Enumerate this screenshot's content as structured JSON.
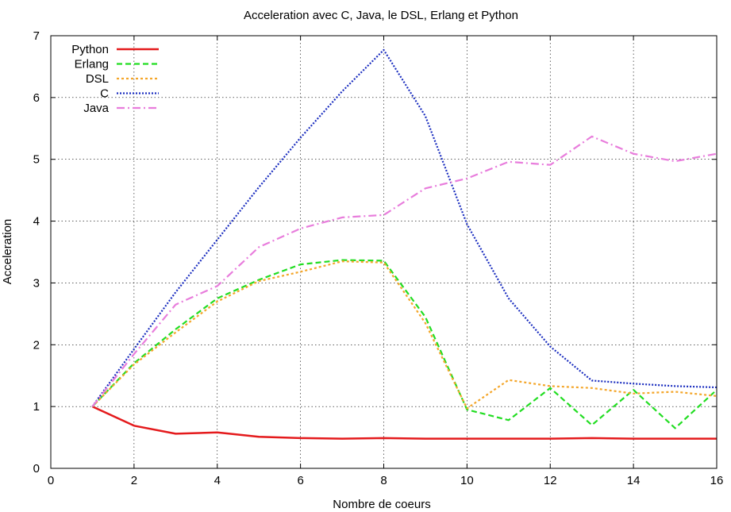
{
  "chart_data": {
    "type": "line",
    "title": "Acceleration avec C, Java, le DSL, Erlang et Python",
    "xlabel": "Nombre de coeurs",
    "ylabel": "Acceleration",
    "xlim": [
      0,
      16
    ],
    "ylim": [
      0,
      7
    ],
    "xticks": [
      0,
      2,
      4,
      6,
      8,
      10,
      12,
      14,
      16
    ],
    "yticks": [
      0,
      1,
      2,
      3,
      4,
      5,
      6,
      7
    ],
    "grid": true,
    "legend_position": "top-left",
    "series": [
      {
        "name": "Python",
        "color": "#e41a1c",
        "style": "solid",
        "x": [
          1,
          2,
          3,
          4,
          5,
          6,
          7,
          8,
          9,
          10,
          11,
          12,
          13,
          14,
          15,
          16
        ],
        "y": [
          1.0,
          0.69,
          0.56,
          0.58,
          0.51,
          0.49,
          0.48,
          0.49,
          0.48,
          0.48,
          0.48,
          0.48,
          0.49,
          0.48,
          0.48,
          0.48
        ]
      },
      {
        "name": "Erlang",
        "color": "#22dd22",
        "style": "dashed",
        "x": [
          1,
          2,
          3,
          4,
          5,
          6,
          7,
          8,
          9,
          10,
          11,
          12,
          13,
          14,
          15,
          16
        ],
        "y": [
          1.0,
          1.7,
          2.25,
          2.75,
          3.05,
          3.3,
          3.37,
          3.36,
          2.45,
          0.95,
          0.78,
          1.3,
          0.7,
          1.27,
          0.65,
          1.27
        ]
      },
      {
        "name": "DSL",
        "color": "#f4a62a",
        "style": "dotted",
        "x": [
          1,
          2,
          3,
          4,
          5,
          6,
          7,
          8,
          9,
          10,
          11,
          12,
          13,
          14,
          15,
          16
        ],
        "y": [
          1.0,
          1.68,
          2.2,
          2.7,
          3.03,
          3.18,
          3.35,
          3.33,
          2.35,
          0.97,
          1.43,
          1.33,
          1.3,
          1.21,
          1.24,
          1.17
        ]
      },
      {
        "name": "C",
        "color": "#1a2dbf",
        "style": "dense-dotted",
        "x": [
          1,
          2,
          3,
          4,
          5,
          6,
          7,
          8,
          9,
          10,
          11,
          12,
          13,
          14,
          15,
          16
        ],
        "y": [
          1.0,
          1.93,
          2.85,
          3.7,
          4.55,
          5.35,
          6.1,
          6.77,
          5.7,
          3.95,
          2.75,
          1.97,
          1.42,
          1.37,
          1.33,
          1.31
        ]
      },
      {
        "name": "Java",
        "color": "#e87ddc",
        "style": "dash-dot",
        "x": [
          1,
          2,
          3,
          4,
          5,
          6,
          7,
          8,
          9,
          10,
          11,
          12,
          13,
          14,
          15,
          16
        ],
        "y": [
          1.0,
          1.85,
          2.65,
          2.95,
          3.58,
          3.88,
          4.06,
          4.1,
          4.53,
          4.69,
          4.96,
          4.91,
          5.37,
          5.09,
          4.97,
          5.09
        ]
      }
    ]
  }
}
